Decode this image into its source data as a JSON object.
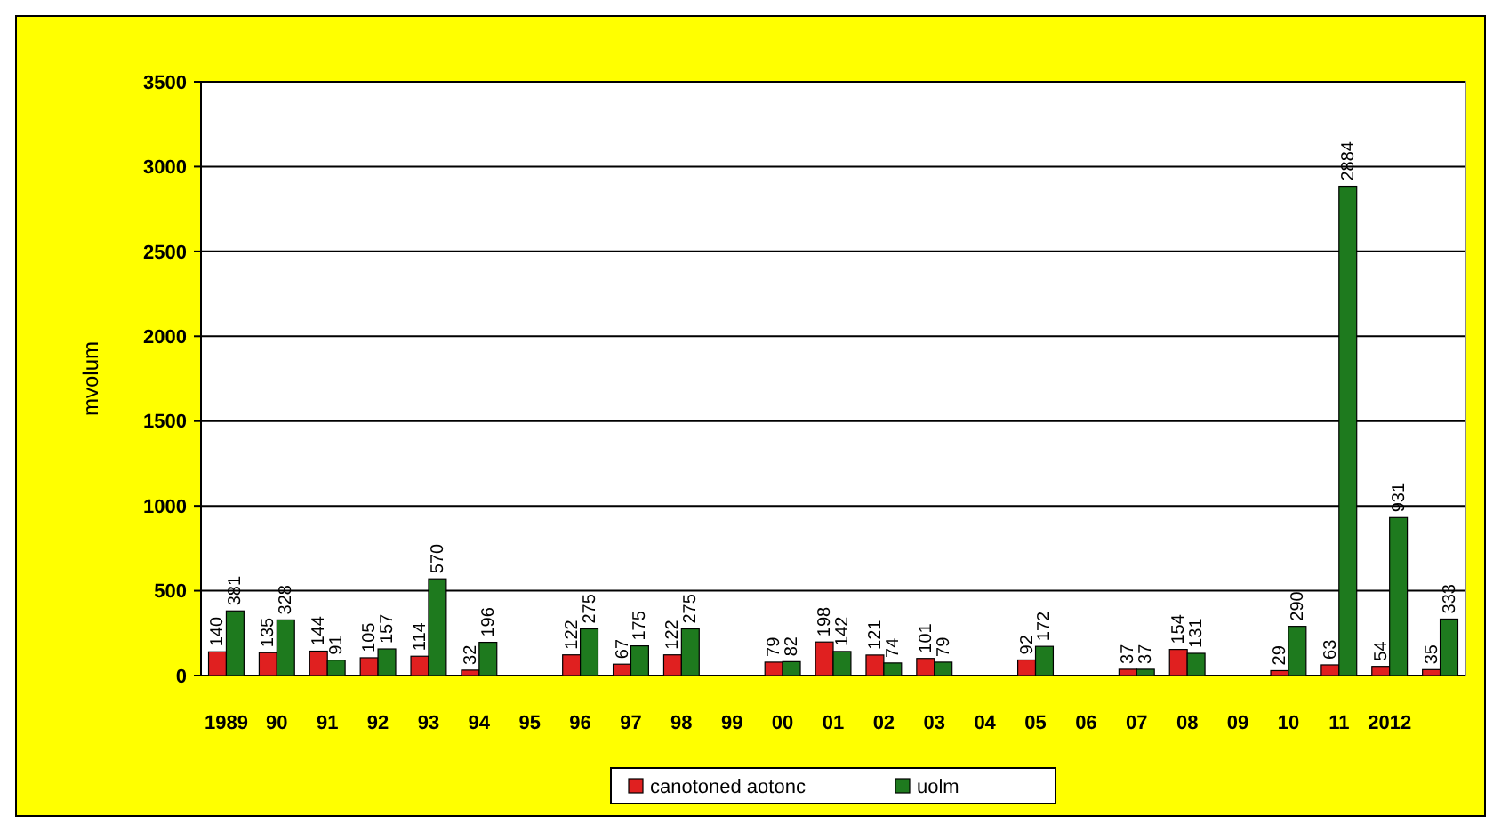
{
  "chart_data": {
    "type": "bar",
    "ylabel": "mvolum",
    "categories": [
      "1989",
      "90",
      "91",
      "92",
      "93",
      "94",
      "95",
      "96",
      "97",
      "98",
      "99",
      "00",
      "01",
      "02",
      "03",
      "04",
      "05",
      "06",
      "07",
      "08",
      "09",
      "10",
      "11",
      "2012",
      null
    ],
    "series": [
      {
        "name": "canotoned aotonc",
        "color": "#e02020",
        "values": [
          140,
          135,
          144,
          105,
          114,
          32,
          null,
          122,
          67,
          122,
          null,
          79,
          198,
          121,
          101,
          null,
          92,
          null,
          37,
          154,
          null,
          29,
          63,
          54,
          35
        ]
      },
      {
        "name": "uolm",
        "color": "#1e7a1e",
        "values": [
          381,
          328,
          91,
          157,
          570,
          196,
          null,
          275,
          175,
          275,
          null,
          82,
          142,
          74,
          79,
          null,
          172,
          null,
          37,
          131,
          null,
          290,
          2884,
          931,
          333
        ]
      }
    ],
    "ylim": [
      0,
      3500
    ],
    "yticks": [
      0,
      500,
      1000,
      1500,
      2000,
      2500,
      3000,
      3500
    ],
    "grid": "y",
    "data_labels": true,
    "legend": "bottom"
  }
}
